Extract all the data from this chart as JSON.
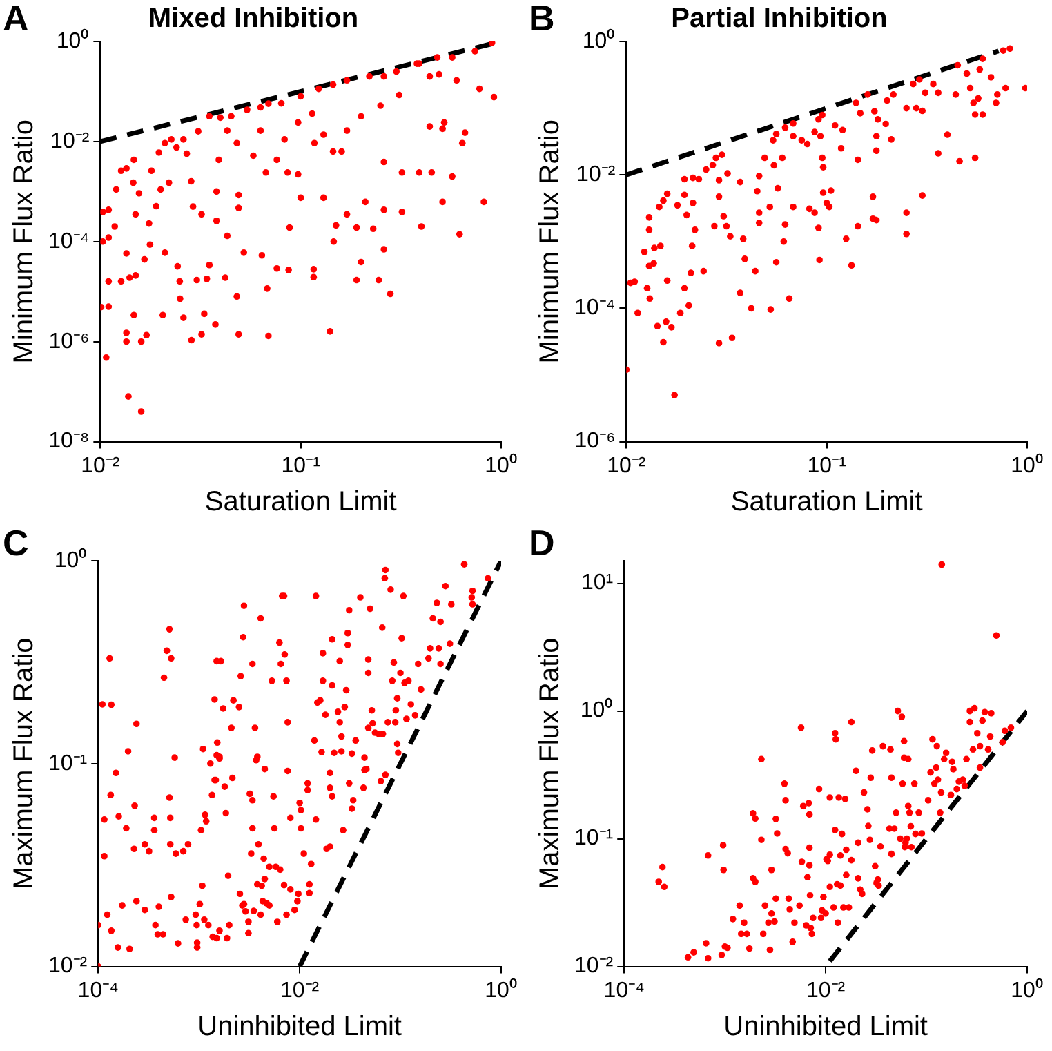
{
  "chart_data": [
    {
      "type": "scatter",
      "title": "Mixed Inhibition",
      "xlabel": "Saturation Limit",
      "ylabel": "Minimum Flux Ratio",
      "annotations": [
        "A"
      ],
      "log": "xy",
      "grid": false,
      "legend": false,
      "marker": "circle",
      "xlim": [
        0.01,
        1
      ],
      "ylim": [
        1e-08,
        1
      ],
      "xticks": [
        {
          "value": 0.01,
          "label": "10⁻²"
        },
        {
          "value": 0.1,
          "label": "10⁻¹"
        },
        {
          "value": 1,
          "label": "10⁰"
        }
      ],
      "yticks": [
        {
          "value": 1e-08,
          "label": "10⁻⁸"
        },
        {
          "value": 1e-06,
          "label": "10⁻⁶"
        },
        {
          "value": 0.0001,
          "label": "10⁻⁴"
        },
        {
          "value": 0.01,
          "label": "10⁻²"
        },
        {
          "value": 1,
          "label": "10⁰"
        }
      ],
      "series": [
        {
          "type": "scatter",
          "color": "#ff0000",
          "x": [
            0.0138,
            0.016,
            0.0107,
            0.0135,
            0.0135,
            0.016,
            0.017,
            0.0147,
            0.0205,
            0.026,
            0.0285,
            0.032,
            0.033,
            0.0375,
            0.049,
            0.048,
            0.069,
            0.068,
            0.14,
            0.28,
            0.245,
            0.19,
            0.116,
            0.116,
            0.2,
            0.26,
            0.62,
            0.4,
            0.23,
            0.19,
            0.146,
            0.15,
            0.088,
            0.076,
            0.087,
            0.064,
            0.052,
            0.043,
            0.035,
            0.042,
            0.034,
            0.0303,
            0.0249,
            0.025,
            0.0243,
            0.021,
            0.0177,
            0.0166,
            0.015,
            0.014,
            0.0135,
            0.0127,
            0.011,
            0.011,
            0.0101,
            0.0103,
            0.011,
            0.0103,
            0.011,
            0.0118,
            0.0127,
            0.0135,
            0.0147,
            0.0146,
            0.015,
            0.0175,
            0.018,
            0.0196,
            0.021,
            0.0226,
            0.024,
            0.026,
            0.027,
            0.0284,
            0.029,
            0.032,
            0.0308,
            0.035,
            0.0397,
            0.039,
            0.038,
            0.038,
            0.045,
            0.048,
            0.049,
            0.049,
            0.054,
            0.063,
            0.069,
            0.08,
            0.083,
            0.058,
            0.067,
            0.086,
            0.097,
            0.1,
            0.1,
            0.123,
            0.145,
            0.17,
            0.22,
            0.26,
            0.3,
            0.38,
            0.48,
            0.57,
            0.74,
            0.9,
            0.92,
            0.78,
            0.6,
            0.49,
            0.44,
            0.39,
            0.31,
            0.25,
            0.2,
            0.17,
            0.16,
            0.145,
            0.13,
            0.117,
            0.114,
            0.097,
            0.26,
            0.32,
            0.39,
            0.44,
            0.51,
            0.52,
            0.66,
            0.64,
            0.57,
            0.51,
            0.82,
            0.45,
            0.26,
            0.32,
            0.21,
            0.17,
            0.13,
            0.076,
            0.063,
            0.043,
            0.022,
            0.02,
            0.019,
            0.0156,
            0.012
          ],
          "values": [
            8e-08,
            4e-08,
            4.8e-07,
            1.5e-06,
            1e-06,
            1e-06,
            1.35e-06,
            3.4e-06,
            3.4e-06,
            3e-06,
            1.07e-06,
            1.4e-06,
            3.6e-06,
            2.2e-06,
            1.4e-06,
            8e-06,
            1.3e-06,
            1.15e-05,
            1.6e-06,
            9e-06,
            1.7e-05,
            1.7e-05,
            1.95e-05,
            2.8e-05,
            3.9e-05,
            7e-05,
            0.00014,
            0.0002,
            0.00018,
            0.00019,
            0.0001,
            0.00021,
            0.00019,
            2.9e-05,
            2.7e-05,
            5.3e-05,
            6e-05,
            0.00013,
            3.4e-05,
            1.9e-05,
            1.8e-05,
            1.7e-05,
            1.6e-05,
            7.2e-06,
            3.2e-05,
            6e-05,
            8.7e-05,
            4.4e-05,
            2.1e-05,
            1.9e-05,
            5.8e-05,
            1.6e-05,
            1.6e-05,
            5e-06,
            4.9e-06,
            0.0001,
            0.00012,
            0.00039,
            0.00043,
            0.0002,
            0.0026,
            0.0029,
            0.0043,
            0.0015,
            0.00035,
            0.00023,
            0.0026,
            0.006,
            0.0093,
            0.011,
            0.0076,
            0.011,
            0.0057,
            0.0016,
            0.0005,
            0.00035,
            0.016,
            0.032,
            0.03,
            0.0043,
            0.001,
            0.00026,
            0.032,
            0.0093,
            0.00085,
            0.00047,
            0.043,
            0.048,
            0.057,
            0.058,
            0.011,
            0.0052,
            0.0024,
            0.0024,
            0.0022,
            0.00075,
            0.08,
            0.113,
            0.137,
            0.167,
            0.2,
            0.2,
            0.25,
            0.36,
            0.48,
            0.48,
            0.64,
            0.94,
            0.077,
            0.113,
            0.167,
            0.22,
            0.2,
            0.36,
            0.085,
            0.052,
            0.032,
            0.0165,
            0.0063,
            0.0063,
            0.0137,
            0.0093,
            0.036,
            0.024,
            0.0039,
            0.0024,
            0.0024,
            0.02,
            0.018,
            0.024,
            0.015,
            0.0093,
            0.002,
            0.00062,
            0.00062,
            0.0024,
            0.00043,
            0.00039,
            0.00062,
            0.00035,
            0.00075,
            0.0043,
            0.0165,
            0.0165,
            0.0015,
            0.0011,
            0.00051,
            0.00092,
            0.0011
          ]
        },
        {
          "type": "line",
          "color": "#000000",
          "line_style": "dashed",
          "marker": "none",
          "x": [
            0.01,
            0.9
          ],
          "values": [
            0.01,
            0.9
          ]
        }
      ]
    },
    {
      "type": "scatter",
      "title": "Partial Inhibition",
      "xlabel": "Saturation Limit",
      "ylabel": "Minimum Flux Ratio",
      "annotations": [
        "B"
      ],
      "log": "xy",
      "grid": false,
      "legend": false,
      "marker": "circle",
      "xlim": [
        0.01,
        1
      ],
      "ylim": [
        1e-06,
        1
      ],
      "xticks": [
        {
          "value": 0.01,
          "label": "10⁻²"
        },
        {
          "value": 0.1,
          "label": "10⁻¹"
        },
        {
          "value": 1,
          "label": "10⁰"
        }
      ],
      "yticks": [
        {
          "value": 1e-06,
          "label": "10⁻⁶"
        },
        {
          "value": 0.0001,
          "label": "10⁻⁴"
        },
        {
          "value": 0.01,
          "label": "10⁻²"
        },
        {
          "value": 1,
          "label": "10⁰"
        }
      ],
      "series": [
        {
          "type": "scatter",
          "color": "#ff0000",
          "x": [
            0.01,
            0.0174,
            0.029,
            0.0337,
            0.0153,
            0.0158,
            0.0168,
            0.0143,
            0.0114,
            0.0105,
            0.011,
            0.0131,
            0.0127,
            0.0186,
            0.0205,
            0.0195,
            0.021,
            0.0243,
            0.016,
            0.0137,
            0.013,
            0.0123,
            0.0138,
            0.0148,
            0.013,
            0.013,
            0.0146,
            0.0153,
            0.016,
            0.018,
            0.0195,
            0.02,
            0.0215,
            0.0213,
            0.022,
            0.0195,
            0.0215,
            0.023,
            0.025,
            0.027,
            0.028,
            0.03,
            0.032,
            0.029,
            0.029,
            0.0306,
            0.0275,
            0.0316,
            0.033,
            0.0383,
            0.039,
            0.037,
            0.042,
            0.0525,
            0.044,
            0.046,
            0.046,
            0.045,
            0.037,
            0.046,
            0.049,
            0.054,
            0.0545,
            0.056,
            0.062,
            0.068,
            0.068,
            0.06,
            0.057,
            0.062,
            0.061,
            0.056,
            0.065,
            0.068,
            0.052,
            0.075,
            0.08,
            0.087,
            0.091,
            0.095,
            0.093,
            0.095,
            0.096,
            0.082,
            0.087,
            0.091,
            0.092,
            0.096,
            0.1,
            0.103,
            0.105,
            0.11,
            0.12,
            0.118,
            0.133,
            0.125,
            0.143,
            0.143,
            0.14,
            0.147,
            0.16,
            0.173,
            0.177,
            0.177,
            0.17,
            0.17,
            0.177,
            0.18,
            0.197,
            0.21,
            0.2,
            0.215,
            0.25,
            0.25,
            0.25,
            0.27,
            0.29,
            0.3,
            0.28,
            0.3,
            0.31,
            0.34,
            0.36,
            0.36,
            0.4,
            0.44,
            0.45,
            0.46,
            0.52,
            0.5,
            0.55,
            0.54,
            0.55,
            0.57,
            0.6,
            0.6,
            0.58,
            0.66,
            0.7,
            0.71,
            0.78,
            0.76,
            0.82,
            0.98
          ],
          "values": [
            1.2e-05,
            5e-06,
            3e-05,
            3.6e-05,
            3.1e-05,
            6.3e-05,
            5.2e-05,
            5.4e-05,
            8.5e-05,
            0.00024,
            0.00025,
            0.00014,
            0.0002,
            8.5e-05,
            0.00011,
            0.0002,
            0.00034,
            0.00036,
            0.00026,
            0.00047,
            0.00043,
            0.0007,
            0.0008,
            0.00086,
            0.0015,
            0.0023,
            0.0033,
            0.0041,
            0.0052,
            0.0035,
            0.005,
            0.0025,
            0.0038,
            0.00086,
            0.0015,
            0.0086,
            0.009,
            0.0086,
            0.012,
            0.014,
            0.018,
            0.02,
            0.0105,
            0.0083,
            0.0047,
            0.0024,
            0.0017,
            0.0017,
            0.0012,
            0.0011,
            0.00055,
            0.00017,
            0.0001,
            9.6e-05,
            0.00036,
            0.0027,
            0.0019,
            0.0057,
            0.0078,
            0.0096,
            0.018,
            0.033,
            0.0139,
            0.041,
            0.051,
            0.059,
            0.038,
            0.018,
            0.0063,
            0.0018,
            0.001,
            0.00049,
            0.00014,
            0.0033,
            0.0033,
            0.033,
            0.029,
            0.044,
            0.068,
            0.079,
            0.038,
            0.018,
            0.013,
            0.0031,
            0.0027,
            0.0016,
            0.00053,
            0.0054,
            0.0038,
            0.0033,
            0.0058,
            0.055,
            0.047,
            0.025,
            0.00044,
            0.0011,
            0.0168,
            0.0017,
            0.12,
            0.084,
            0.16,
            0.09,
            0.038,
            0.023,
            0.0047,
            0.0022,
            0.0021,
            0.068,
            0.058,
            0.034,
            0.13,
            0.16,
            0.1,
            0.0027,
            0.0013,
            0.23,
            0.27,
            0.0049,
            0.1,
            0.091,
            0.17,
            0.23,
            0.17,
            0.021,
            0.04,
            0.16,
            0.44,
            0.016,
            0.2,
            0.33,
            0.018,
            0.12,
            0.08,
            0.14,
            0.08,
            0.55,
            0.38,
            0.29,
            0.12,
            0.16,
            0.2,
            0.73,
            0.78,
            0.2
          ]
        },
        {
          "type": "line",
          "color": "#000000",
          "line_style": "dashed",
          "marker": "none",
          "x": [
            0.01,
            0.72
          ],
          "values": [
            0.01,
            0.72
          ]
        }
      ]
    },
    {
      "type": "scatter",
      "xlabel": "Uninhibited Limit",
      "ylabel": "Maximum Flux Ratio",
      "annotations": [
        "C"
      ],
      "log": "xy",
      "grid": false,
      "legend": false,
      "marker": "circle",
      "xlim": [
        0.0001,
        1
      ],
      "ylim": [
        0.01,
        1
      ],
      "xticks": [
        {
          "value": 0.0001,
          "label": "10⁻⁴"
        },
        {
          "value": 0.01,
          "label": "10⁻²"
        },
        {
          "value": 1,
          "label": "10⁰"
        }
      ],
      "yticks": [
        {
          "value": 0.01,
          "label": "10⁻²"
        },
        {
          "value": 0.1,
          "label": "10⁻¹"
        },
        {
          "value": 1,
          "label": "10⁰"
        }
      ],
      "series": [
        {
          "type": "scatter",
          "color": "#ff0000",
          "x": [
            0.0001,
            0.0001,
            0.00011,
            0.000135,
            0.00013,
            0.00015,
            0.000133,
            0.000115,
            0.000115,
            0.000123,
            0.000135,
            0.000157,
            0.00016,
            0.000173,
            0.00019,
            0.000198,
            0.000205,
            0.000227,
            0.00023,
            0.00024,
            0.00024,
            0.00029,
            0.00029,
            0.00032,
            0.00036,
            0.00036,
            0.00037,
            0.00039,
            0.0004,
            0.00044,
            0.00045,
            0.00048,
            0.00051,
            0.00053,
            0.00051,
            0.00052,
            0.00052,
            0.00053,
            0.000575,
            0.00059,
            0.00062,
            0.0007,
            0.00074,
            0.00078,
            0.00093,
            0.00095,
            0.00096,
            0.00096,
            0.00102,
            0.00105,
            0.00108,
            0.0011,
            0.00115,
            0.00118,
            0.00113,
            0.00124,
            0.0013,
            0.00135,
            0.00137,
            0.00143,
            0.00143,
            0.00147,
            0.0015,
            0.00165,
            0.0015,
            0.00152,
            0.0016,
            0.0016,
            0.0015,
            0.0016,
            0.00174,
            0.0018,
            0.00185,
            0.0019,
            0.00195,
            0.002,
            0.0021,
            0.00215,
            0.0022,
            0.0025,
            0.00255,
            0.0026,
            0.0027,
            0.00275,
            0.0028,
            0.0028,
            0.0029,
            0.0031,
            0.0031,
            0.0032,
            0.0033,
            0.0034,
            0.0034,
            0.0034,
            0.0035,
            0.0036,
            0.0037,
            0.0038,
            0.0038,
            0.0039,
            0.0041,
            0.0041,
            0.0042,
            0.0043,
            0.0044,
            0.0045,
            0.0045,
            0.0047,
            0.005,
            0.005,
            0.0053,
            0.0055,
            0.0056,
            0.0058,
            0.006,
            0.0063,
            0.0064,
            0.0065,
            0.0067,
            0.007,
            0.0071,
            0.0074,
            0.0076,
            0.0076,
            0.0081,
            0.007,
            0.0074,
            0.0081,
            0.0089,
            0.0095,
            0.0097,
            0.01,
            0.0103,
            0.0103,
            0.011,
            0.012,
            0.012,
            0.0125,
            0.0125,
            0.013,
            0.014,
            0.0145,
            0.0145,
            0.015,
            0.016,
            0.0165,
            0.017,
            0.017,
            0.018,
            0.0185,
            0.02,
            0.02,
            0.021,
            0.021,
            0.021,
            0.02,
            0.022,
            0.024,
            0.025,
            0.025,
            0.026,
            0.026,
            0.027,
            0.028,
            0.029,
            0.03,
            0.03,
            0.031,
            0.031,
            0.033,
            0.033,
            0.034,
            0.036,
            0.04,
            0.043,
            0.044,
            0.044,
            0.046,
            0.048,
            0.048,
            0.048,
            0.05,
            0.052,
            0.053,
            0.056,
            0.061,
            0.064,
            0.066,
            0.067,
            0.07,
            0.071,
            0.071,
            0.075,
            0.08,
            0.083,
            0.086,
            0.089,
            0.09,
            0.093,
            0.093,
            0.095,
            0.1,
            0.103,
            0.107,
            0.11,
            0.115,
            0.12,
            0.127,
            0.14,
            0.16,
            0.15,
            0.19,
            0.197,
            0.21,
            0.23,
            0.25,
            0.24,
            0.25,
            0.28,
            0.31,
            0.32,
            0.43,
            0.52,
            0.52,
            0.51,
            0.74
          ],
          "values": [
            0.01,
            0.016,
            0.196,
            0.195,
            0.33,
            0.09,
            0.07,
            0.053,
            0.035,
            0.018,
            0.015,
            0.0124,
            0.055,
            0.02,
            0.048,
            0.115,
            0.0122,
            0.038,
            0.062,
            0.021,
            0.157,
            0.019,
            0.04,
            0.037,
            0.047,
            0.054,
            0.016,
            0.0144,
            0.0197,
            0.0144,
            0.265,
            0.36,
            0.46,
            0.33,
            0.068,
            0.054,
            0.04,
            0.022,
            0.107,
            0.036,
            0.013,
            0.037,
            0.017,
            0.04,
            0.018,
            0.016,
            0.0131,
            0.0124,
            0.0203,
            0.047,
            0.025,
            0.118,
            0.056,
            0.052,
            0.017,
            0.016,
            0.1,
            0.07,
            0.014,
            0.207,
            0.083,
            0.083,
            0.32,
            0.32,
            0.11,
            0.127,
            0.108,
            0.106,
            0.0138,
            0.015,
            0.187,
            0.077,
            0.057,
            0.0138,
            0.028,
            0.016,
            0.15,
            0.085,
            0.205,
            0.19,
            0.0228,
            0.27,
            0.02,
            0.42,
            0.6,
            0.0203,
            0.0187,
            0.0146,
            0.0166,
            0.071,
            0.036,
            0.066,
            0.31,
            0.048,
            0.0188,
            0.15,
            0.104,
            0.108,
            0.0254,
            0.04,
            0.018,
            0.52,
            0.025,
            0.021,
            0.034,
            0.094,
            0.027,
            0.0205,
            0.02,
            0.031,
            0.256,
            0.069,
            0.048,
            0.031,
            0.0166,
            0.395,
            0.03,
            0.31,
            0.67,
            0.67,
            0.345,
            0.256,
            0.16,
            0.092,
            0.054,
            0.0252,
            0.018,
            0.024,
            0.019,
            0.021,
            0.0228,
            0.064,
            0.059,
            0.048,
            0.036,
            0.08,
            0.074,
            0.0254,
            0.023,
            0.032,
            0.13,
            0.67,
            0.053,
            0.2,
            0.205,
            0.114,
            0.256,
            0.35,
            0.174,
            0.038,
            0.09,
            0.076,
            0.41,
            0.243,
            0.069,
            0.039,
            0.113,
            0.18,
            0.32,
            0.16,
            0.136,
            0.115,
            0.047,
            0.19,
            0.23,
            0.385,
            0.44,
            0.08,
            0.57,
            0.112,
            0.06,
            0.066,
            0.13,
            0.66,
            0.076,
            0.093,
            0.107,
            0.094,
            0.28,
            0.326,
            0.15,
            0.58,
            0.183,
            0.158,
            0.142,
            0.14,
            0.082,
            0.468,
            0.14,
            0.82,
            0.9,
            0.088,
            0.16,
            0.72,
            0.256,
            0.315,
            0.16,
            0.183,
            0.21,
            0.125,
            0.113,
            0.28,
            0.415,
            0.67,
            0.25,
            0.166,
            0.256,
            0.196,
            0.173,
            0.232,
            0.31,
            0.33,
            0.37,
            0.52,
            0.62,
            0.5,
            0.37,
            0.31,
            0.75,
            0.39,
            0.61,
            0.96,
            0.71,
            0.61,
            0.66,
            0.82
          ]
        },
        {
          "type": "line",
          "color": "#000000",
          "line_style": "dashed",
          "marker": "none",
          "x": [
            0.01,
            1
          ],
          "values": [
            0.01,
            1
          ]
        }
      ]
    },
    {
      "type": "scatter",
      "xlabel": "Uninhibited Limit",
      "ylabel": "Maximum Flux Ratio",
      "annotations": [
        "D"
      ],
      "log": "xy",
      "grid": false,
      "legend": false,
      "marker": "circle",
      "xlim": [
        0.0001,
        1
      ],
      "ylim": [
        0.01,
        15
      ],
      "xticks": [
        {
          "value": 0.0001,
          "label": "10⁻⁴"
        },
        {
          "value": 0.01,
          "label": "10⁻²"
        },
        {
          "value": 1,
          "label": "10⁰"
        }
      ],
      "yticks": [
        {
          "value": 0.01,
          "label": "10⁻²"
        },
        {
          "value": 0.1,
          "label": "10⁻¹"
        },
        {
          "value": 1,
          "label": "10⁰"
        },
        {
          "value": 10,
          "label": "10¹"
        }
      ],
      "series": [
        {
          "type": "scatter",
          "color": "#ff0000",
          "x": [
            0.142,
            0.495,
            0.00022,
            0.00025,
            0.00024,
            0.00043,
            0.00049,
            0.00065,
            0.00068,
            0.00068,
            0.00096,
            0.00097,
            0.00093,
            0.001,
            0.00106,
            0.0012,
            0.0014,
            0.00145,
            0.00155,
            0.00165,
            0.00175,
            0.0019,
            0.002,
            0.0019,
            0.002,
            0.0023,
            0.0023,
            0.0024,
            0.0025,
            0.0027,
            0.0028,
            0.0029,
            0.0029,
            0.0031,
            0.0032,
            0.0032,
            0.0033,
            0.0039,
            0.004,
            0.004,
            0.0042,
            0.0043,
            0.0044,
            0.0047,
            0.0049,
            0.0055,
            0.0058,
            0.006,
            0.0064,
            0.0066,
            0.0068,
            0.0069,
            0.0069,
            0.0069,
            0.007,
            0.0071,
            0.0075,
            0.0073,
            0.0057,
            0.0086,
            0.009,
            0.0092,
            0.0095,
            0.01,
            0.0102,
            0.0105,
            0.011,
            0.011,
            0.011,
            0.012,
            0.0124,
            0.0126,
            0.0124,
            0.013,
            0.0132,
            0.0135,
            0.014,
            0.014,
            0.0145,
            0.015,
            0.0156,
            0.016,
            0.016,
            0.018,
            0.018,
            0.017,
            0.02,
            0.021,
            0.021,
            0.022,
            0.023,
            0.024,
            0.026,
            0.0265,
            0.0275,
            0.028,
            0.029,
            0.031,
            0.032,
            0.033,
            0.0335,
            0.035,
            0.037,
            0.044,
            0.045,
            0.043,
            0.045,
            0.048,
            0.05,
            0.052,
            0.057,
            0.055,
            0.058,
            0.06,
            0.06,
            0.061,
            0.062,
            0.064,
            0.066,
            0.066,
            0.068,
            0.07,
            0.071,
            0.076,
            0.078,
            0.084,
            0.09,
            0.104,
            0.11,
            0.115,
            0.12,
            0.125,
            0.127,
            0.13,
            0.137,
            0.14,
            0.15,
            0.157,
            0.175,
            0.18,
            0.185,
            0.2,
            0.21,
            0.23,
            0.24,
            0.25,
            0.27,
            0.27,
            0.29,
            0.3,
            0.32,
            0.34,
            0.34,
            0.36,
            0.38,
            0.41,
            0.43,
            0.44,
            0.57,
            0.6,
            0.69
          ],
          "values": [
            14,
            3.9,
            0.046,
            0.042,
            0.06,
            0.0118,
            0.0129,
            0.0152,
            0.0116,
            0.074,
            0.089,
            0.057,
            0.0123,
            0.0143,
            0.014,
            0.0235,
            0.03,
            0.018,
            0.022,
            0.018,
            0.0138,
            0.158,
            0.144,
            0.049,
            0.046,
            0.42,
            0.098,
            0.018,
            0.03,
            0.022,
            0.0135,
            0.026,
            0.057,
            0.0225,
            0.034,
            0.143,
            0.11,
            0.27,
            0.2,
            0.083,
            0.077,
            0.034,
            0.028,
            0.0156,
            0.022,
            0.03,
            0.066,
            0.18,
            0.021,
            0.05,
            0.19,
            0.155,
            0.062,
            0.085,
            0.036,
            0.02,
            0.024,
            0.018,
            0.74,
            0.245,
            0.024,
            0.0275,
            0.035,
            0.026,
            0.069,
            0.067,
            0.21,
            0.042,
            0.075,
            0.029,
            0.67,
            0.6,
            0.117,
            0.044,
            0.022,
            0.21,
            0.043,
            0.074,
            0.109,
            0.029,
            0.205,
            0.082,
            0.052,
            0.82,
            0.068,
            0.029,
            0.34,
            0.093,
            0.049,
            0.04,
            0.037,
            0.23,
            0.17,
            0.126,
            0.098,
            0.3,
            0.49,
            0.061,
            0.045,
            0.048,
            0.043,
            0.087,
            0.53,
            0.5,
            0.3,
            0.12,
            0.076,
            0.12,
            0.16,
            1.0,
            0.9,
            0.1,
            0.27,
            0.58,
            0.43,
            0.086,
            0.093,
            0.1,
            0.42,
            0.18,
            0.16,
            0.125,
            0.086,
            0.27,
            0.109,
            0.16,
            0.11,
            0.2,
            0.33,
            0.6,
            0.27,
            0.36,
            0.53,
            0.29,
            0.16,
            0.23,
            0.42,
            0.47,
            0.22,
            0.4,
            0.35,
            0.245,
            0.28,
            0.29,
            0.26,
            0.42,
            1.0,
            0.82,
            0.5,
            1.05,
            0.67,
            0.53,
            0.36,
            0.84,
            0.98,
            0.5,
            0.63,
            0.96,
            0.57,
            0.7,
            0.74
          ]
        },
        {
          "type": "line",
          "color": "#000000",
          "line_style": "dashed",
          "marker": "none",
          "x": [
            0.011,
            1
          ],
          "values": [
            0.011,
            1
          ]
        }
      ]
    }
  ]
}
